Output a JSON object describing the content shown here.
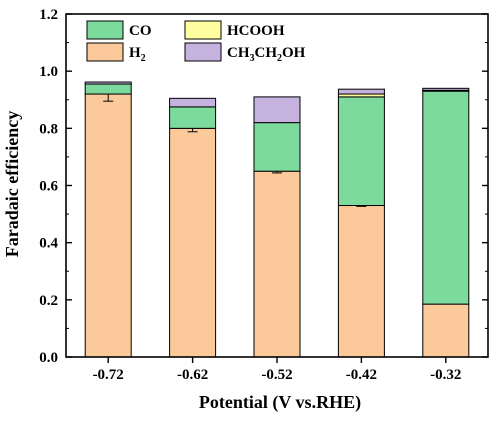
{
  "chart_data": {
    "type": "bar",
    "stacked": true,
    "categories": [
      "-0.72",
      "-0.62",
      "-0.52",
      "-0.42",
      "-0.32"
    ],
    "xlabel": "Potential (V vs.RHE)",
    "ylabel": "Faradaic efficiency",
    "ylim": [
      0,
      1.2
    ],
    "yticks": [
      0.0,
      0.2,
      0.4,
      0.6,
      0.8,
      1.0,
      1.2
    ],
    "ytick_labels": [
      "0.0",
      "0.2",
      "0.4",
      "0.6",
      "0.8",
      "1.0",
      "1.2"
    ],
    "grid": false,
    "legend_position": "top-left",
    "series": [
      {
        "key": "h2",
        "name": "H2",
        "color": "#FCC99A",
        "values": [
          0.92,
          0.8,
          0.65,
          0.53,
          0.185
        ],
        "errors": [
          0.025,
          0.012,
          0.006,
          0.003,
          0
        ]
      },
      {
        "key": "co",
        "name": "CO",
        "color": "#7DDA9D",
        "values": [
          0.035,
          0.075,
          0.17,
          0.38,
          0.745
        ],
        "errors": [
          0,
          0,
          0,
          0,
          0
        ]
      },
      {
        "key": "hcooh",
        "name": "HCOOH",
        "color": "#FFFFA0",
        "values": [
          0,
          0,
          0,
          0.01,
          0.003
        ],
        "errors": [
          0,
          0,
          0,
          0,
          0
        ]
      },
      {
        "key": "ethanol",
        "name": "CH3CH2OH",
        "color": "#C6B2DF",
        "values": [
          0.007,
          0.03,
          0.09,
          0.017,
          0.007
        ],
        "errors": [
          0,
          0,
          0,
          0,
          0
        ]
      }
    ],
    "legend": [
      {
        "key": "co",
        "label": "CO",
        "sub": ""
      },
      {
        "key": "hcooh",
        "label": "HCOOH",
        "sub": ""
      },
      {
        "key": "h2",
        "label": "H",
        "sub": "2"
      },
      {
        "key": "ethanol",
        "label": "CH3CH2OH",
        "sub": "CH_3CH_2OH"
      }
    ]
  }
}
